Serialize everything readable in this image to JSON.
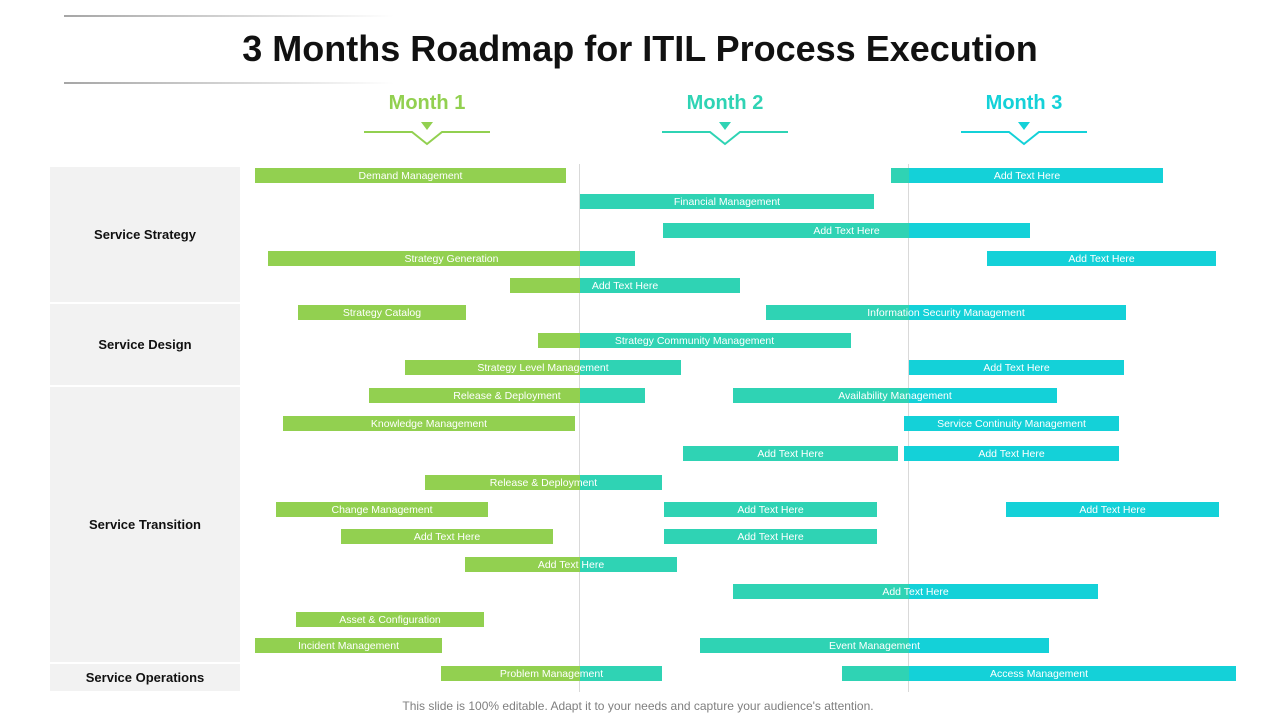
{
  "title": "3 Months Roadmap for ITIL Process Execution",
  "months": [
    {
      "label": "Month 1",
      "color": "#92d050"
    },
    {
      "label": "Month 2",
      "color": "#2fd3b4"
    },
    {
      "label": "Month 3",
      "color": "#14d1d8"
    }
  ],
  "categories": [
    {
      "label": "Service Strategy"
    },
    {
      "label": "Service Design"
    },
    {
      "label": "Service Transition"
    },
    {
      "label": "Service Operations"
    }
  ],
  "tasks": [
    {
      "label": "Demand Management"
    },
    {
      "label": "Add Text Here"
    },
    {
      "label": "Financial Management"
    },
    {
      "label": "Add Text Here"
    },
    {
      "label": "Strategy Generation"
    },
    {
      "label": "Add Text Here"
    },
    {
      "label": "Add Text Here"
    },
    {
      "label": "Strategy Catalog"
    },
    {
      "label": "Information Security Management"
    },
    {
      "label": "Strategy Community Management"
    },
    {
      "label": "Strategy Level Management"
    },
    {
      "label": "Add Text Here"
    },
    {
      "label": "Release & Deployment"
    },
    {
      "label": "Availability  Management"
    },
    {
      "label": "Knowledge Management"
    },
    {
      "label": "Service Continuity  Management"
    },
    {
      "label": "Add Text Here"
    },
    {
      "label": "Add Text Here"
    },
    {
      "label": "Release & Deployment"
    },
    {
      "label": "Change Management"
    },
    {
      "label": "Add Text Here"
    },
    {
      "label": "Add Text Here"
    },
    {
      "label": "Add Text Here"
    },
    {
      "label": "Add Text Here"
    },
    {
      "label": "Add Text Here"
    },
    {
      "label": "Add Text Here"
    },
    {
      "label": "Asset  & Configuration"
    },
    {
      "label": "Incident Management"
    },
    {
      "label": "Event Management"
    },
    {
      "label": "Problem Management"
    },
    {
      "label": "Access Management"
    }
  ],
  "footer": "This slide is 100% editable. Adapt it to your needs and capture your audience's attention."
}
